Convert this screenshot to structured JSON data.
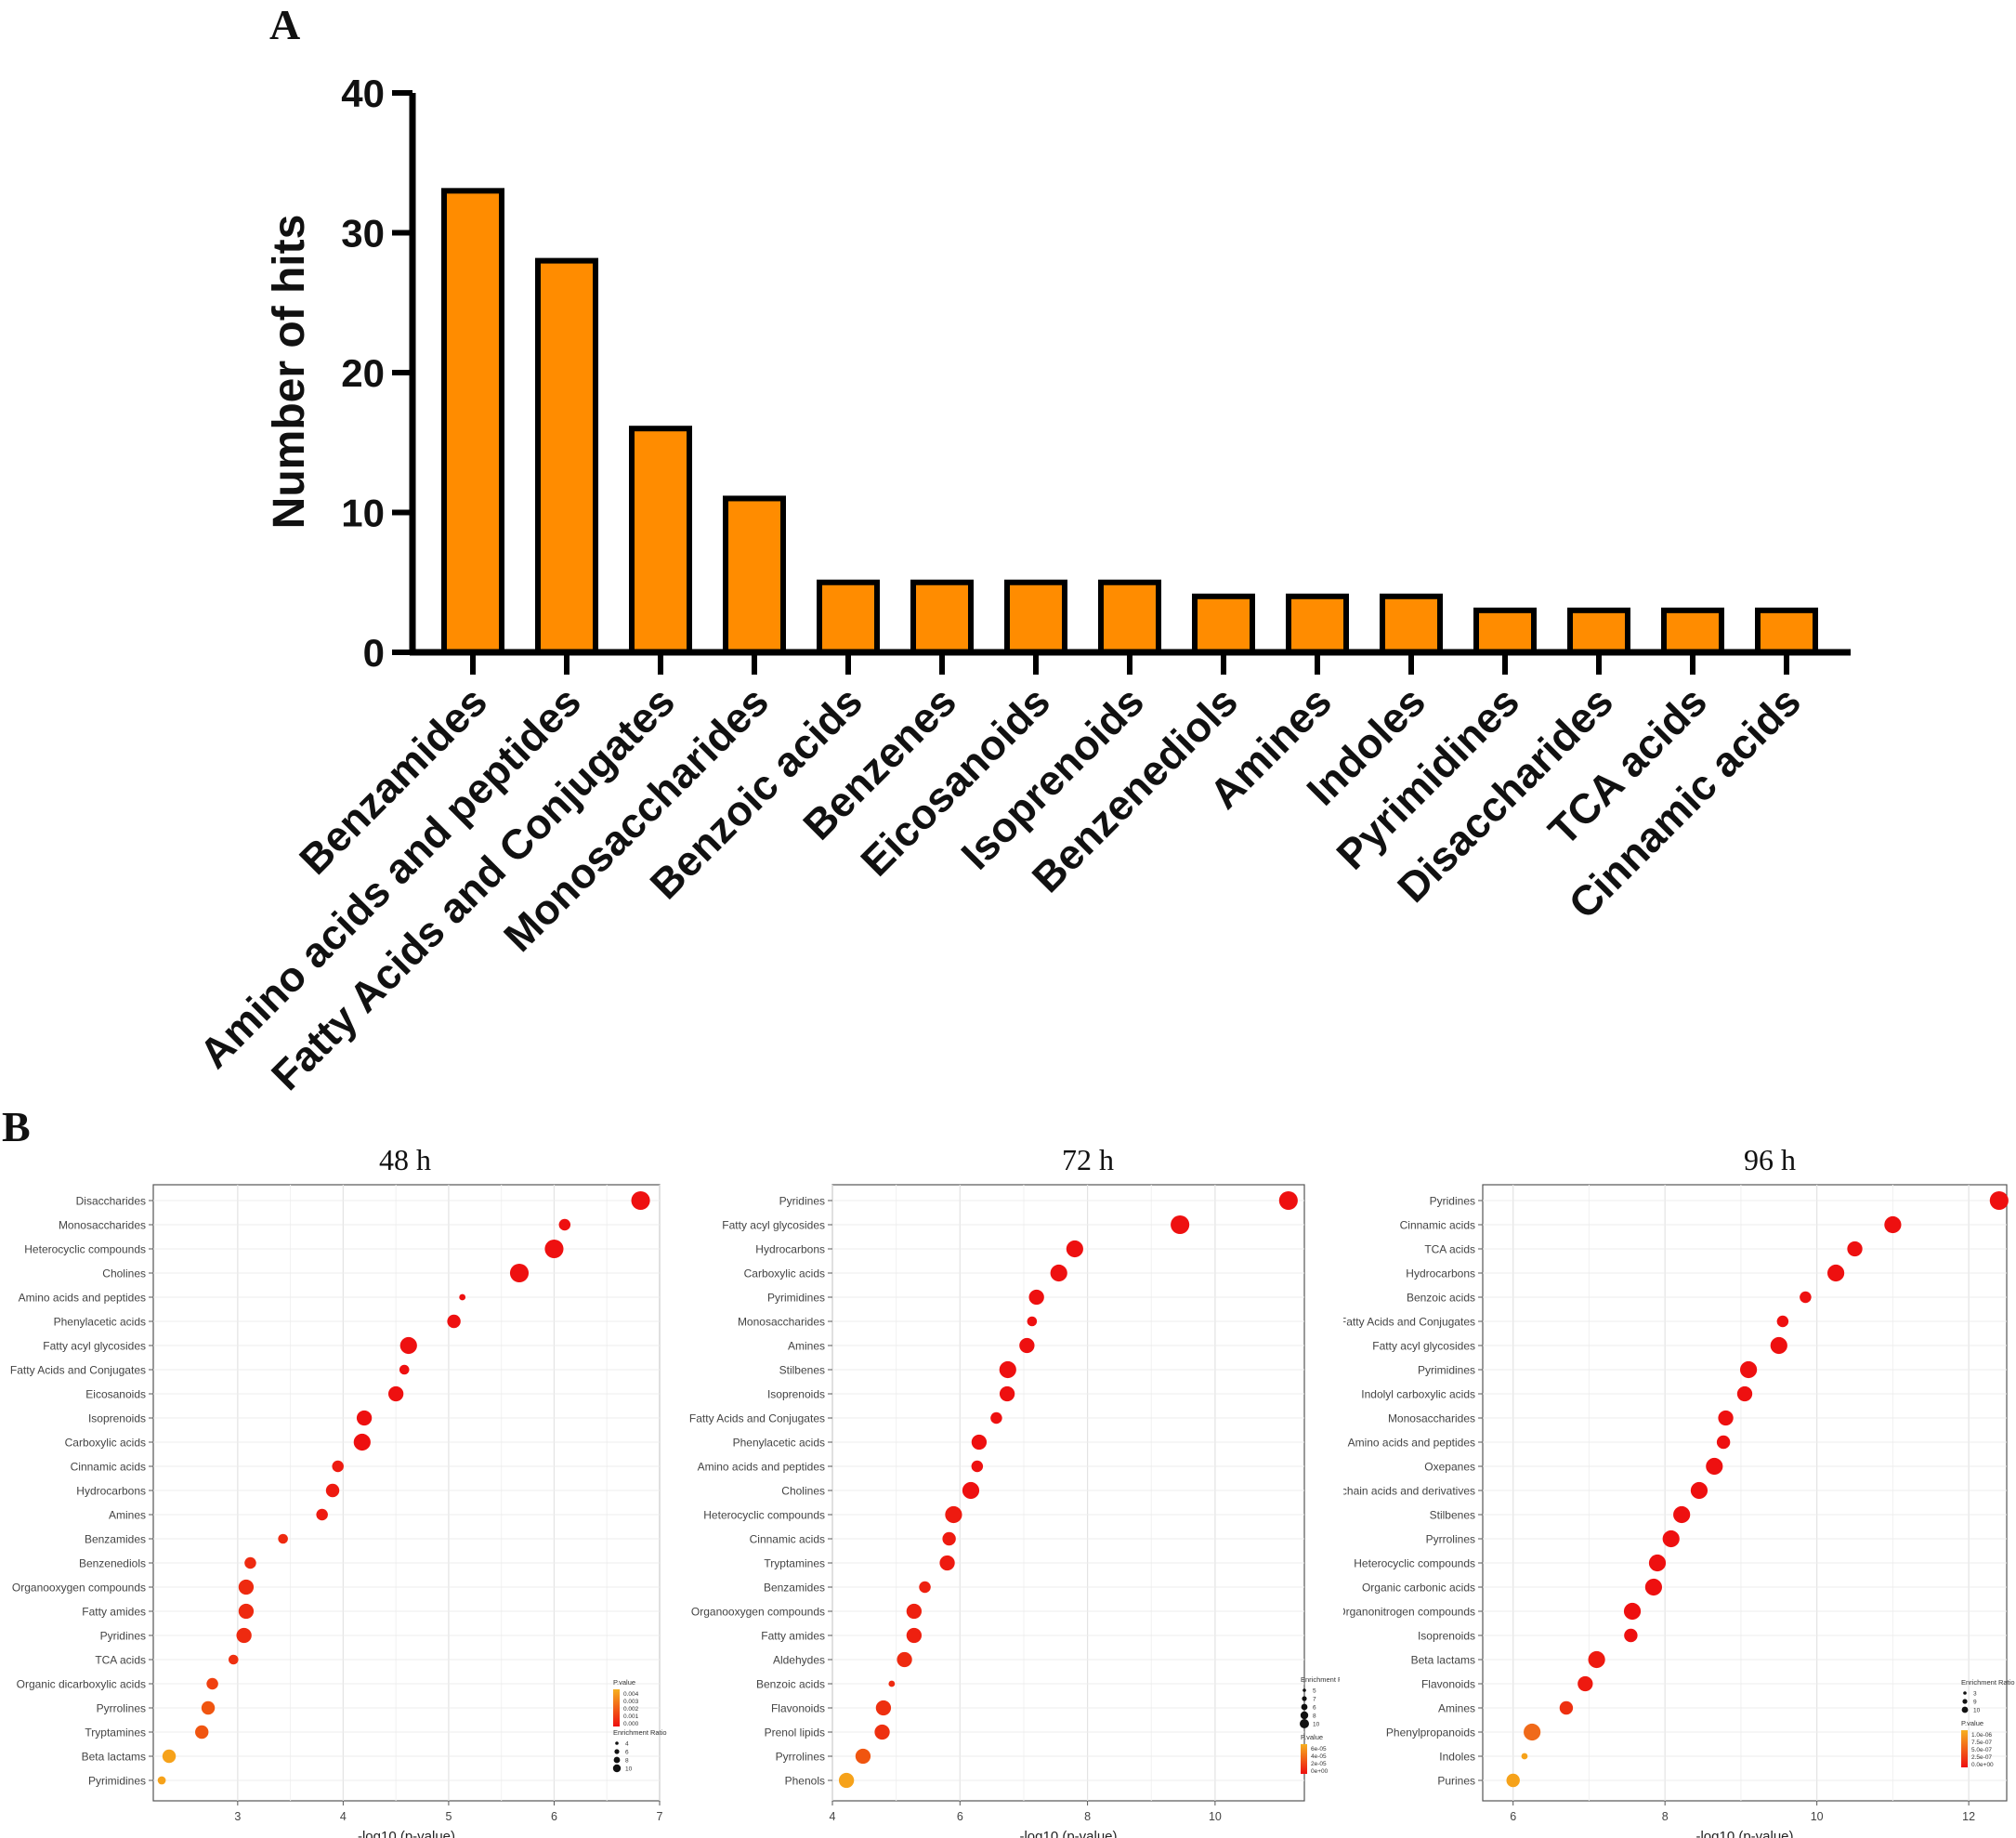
{
  "panels": {
    "a_label": "A",
    "b_label": "B"
  },
  "chart_data": [
    {
      "type": "bar",
      "title": "",
      "ylabel": "Number of hits",
      "xlabel": "",
      "ylim": [
        0,
        40
      ],
      "yticks": [
        0,
        10,
        20,
        30,
        40
      ],
      "bar_color": "#FF8C00",
      "categories": [
        "Benzamides",
        "Amino acids and peptides",
        "Fatty Acids and Conjugates",
        "Monosaccharides",
        "Benzoic acids",
        "Benzenes",
        "Eicosanoids",
        "Isoprenoids",
        "Benzenediols",
        "Amines",
        "Indoles",
        "Pyrimidines",
        "Disaccharides",
        "TCA acids",
        "Cinnamic acids"
      ],
      "values": [
        33,
        28,
        16,
        11,
        5,
        5,
        5,
        5,
        4,
        4,
        4,
        3,
        3,
        3,
        3
      ]
    },
    {
      "type": "scatter",
      "title": "48 h",
      "xlabel": "-log10 (p-value)",
      "xlim": [
        2.2,
        7
      ],
      "xticks": [
        3,
        4,
        5,
        6,
        7
      ],
      "legend": {
        "pvalue_title": "P.value",
        "pvalue_ticks": [
          "0.004",
          "0.003",
          "0.002",
          "0.001",
          "0.000"
        ],
        "ratio_title": "Enrichment Ratio",
        "ratio_ticks": [
          "4",
          "6",
          "8",
          "10"
        ]
      },
      "categories": [
        "Disaccharides",
        "Monosaccharides",
        "Heterocyclic compounds",
        "Cholines",
        "Amino acids and peptides",
        "Phenylacetic acids",
        "Fatty acyl glycosides",
        "Fatty Acids and Conjugates",
        "Eicosanoids",
        "Isoprenoids",
        "Carboxylic acids",
        "Cinnamic acids",
        "Hydrocarbons",
        "Amines",
        "Benzamides",
        "Benzenediols",
        "Organooxygen compounds",
        "Fatty amides",
        "Pyridines",
        "TCA acids",
        "Organic dicarboxylic acids",
        "Pyrrolines",
        "Tryptamines",
        "Beta lactams",
        "Pyrimidines"
      ],
      "x": [
        6.82,
        6.1,
        6.0,
        5.67,
        5.13,
        5.05,
        4.62,
        4.58,
        4.5,
        4.2,
        4.18,
        3.95,
        3.9,
        3.8,
        3.43,
        3.12,
        3.08,
        3.08,
        3.06,
        2.96,
        2.76,
        2.72,
        2.66,
        2.35,
        2.28
      ],
      "ratio": [
        9,
        5,
        9,
        9,
        2,
        6,
        8,
        4,
        7,
        7,
        8,
        5,
        6,
        5,
        4,
        5,
        7,
        7,
        7,
        4,
        5,
        6,
        6,
        6,
        3
      ],
      "color": [
        "#EE1010",
        "#EE1010",
        "#EE1010",
        "#EE1010",
        "#EE1010",
        "#EE1010",
        "#EE1010",
        "#EE1010",
        "#EE1010",
        "#EE1010",
        "#EE1010",
        "#EE1A10",
        "#EE1A10",
        "#EE1A10",
        "#EE2A10",
        "#EE2A10",
        "#EE2A10",
        "#EE2A10",
        "#EE2A10",
        "#EE3010",
        "#F04010",
        "#F05510",
        "#F05510",
        "#F6A21A",
        "#F6A21A"
      ]
    },
    {
      "type": "scatter",
      "title": "72 h",
      "xlabel": "-log10 (p-value)",
      "xlim": [
        4,
        11.4
      ],
      "xticks": [
        4,
        6,
        8,
        10
      ],
      "legend": {
        "ratio_title": "Enrichment Ratio",
        "ratio_ticks": [
          "5",
          "7",
          "6",
          "8",
          "10"
        ],
        "pvalue_title": "P.value",
        "pvalue_ticks": [
          "6e-05",
          "4e-05",
          "2e-05",
          "0e+00"
        ]
      },
      "categories": [
        "Pyridines",
        "Fatty acyl glycosides",
        "Hydrocarbons",
        "Carboxylic acids",
        "Pyrimidines",
        "Monosaccharides",
        "Amines",
        "Stilbenes",
        "Isoprenoids",
        "Fatty Acids and Conjugates",
        "Phenylacetic acids",
        "Amino acids and peptides",
        "Cholines",
        "Heterocyclic compounds",
        "Cinnamic acids",
        "Tryptamines",
        "Benzamides",
        "Organooxygen compounds",
        "Fatty amides",
        "Aldehydes",
        "Benzoic acids",
        "Flavonoids",
        "Prenol lipids",
        "Pyrrolines",
        "Phenols"
      ],
      "x": [
        11.15,
        9.45,
        7.8,
        7.55,
        7.2,
        7.13,
        7.05,
        6.75,
        6.74,
        6.57,
        6.3,
        6.27,
        6.17,
        5.9,
        5.83,
        5.8,
        5.45,
        5.28,
        5.28,
        5.13,
        4.93,
        4.8,
        4.78,
        4.48,
        4.22
      ],
      "ratio": [
        9,
        9,
        8,
        8,
        7,
        4,
        7,
        8,
        7,
        5,
        7,
        5,
        8,
        8,
        6,
        7,
        5,
        7,
        7,
        7,
        2,
        7,
        7,
        7,
        7
      ],
      "color": [
        "#EE1010",
        "#EE1010",
        "#EE1010",
        "#EE1010",
        "#EE1010",
        "#EE1010",
        "#EE1010",
        "#EE1010",
        "#EE1010",
        "#EE1010",
        "#EE1010",
        "#EE1010",
        "#EE1010",
        "#EE1A10",
        "#EE1A10",
        "#EE1A10",
        "#EE2010",
        "#EE2010",
        "#EE2010",
        "#EE2A10",
        "#EE2A10",
        "#EE3010",
        "#EE3010",
        "#F05510",
        "#F6A21A"
      ]
    },
    {
      "type": "scatter",
      "title": "96 h",
      "xlabel": "-log10 (p-value)",
      "xlim": [
        5.6,
        12.5
      ],
      "xticks": [
        6,
        8,
        10,
        12
      ],
      "legend": {
        "ratio_title": "Enrichment Ratio",
        "ratio_ticks": [
          "3",
          "9",
          "10"
        ],
        "pvalue_title": "P.value",
        "pvalue_ticks": [
          "1.0e-06",
          "7.5e-07",
          "5.0e-07",
          "2.5e-07",
          "0.0e+00"
        ]
      },
      "categories": [
        "Pyridines",
        "Cinnamic acids",
        "TCA acids",
        "Hydrocarbons",
        "Benzoic acids",
        "Fatty Acids and Conjugates",
        "Fatty acyl glycosides",
        "Pyrimidines",
        "Indolyl carboxylic acids",
        "Monosaccharides",
        "Amino acids and peptides",
        "Oxepanes",
        "Short-chain acids and derivatives",
        "Stilbenes",
        "Pyrrolines",
        "Heterocyclic compounds",
        "Organic carbonic acids",
        "Organonitrogen compounds",
        "Isoprenoids",
        "Beta lactams",
        "Flavonoids",
        "Amines",
        "Phenylpropanoids",
        "Indoles",
        "Purines"
      ],
      "x": [
        12.4,
        11.0,
        10.5,
        10.25,
        9.85,
        9.55,
        9.5,
        9.1,
        9.05,
        8.8,
        8.77,
        8.65,
        8.45,
        8.22,
        8.08,
        7.9,
        7.85,
        7.57,
        7.55,
        7.1,
        6.95,
        6.7,
        6.25,
        6.15,
        6.0
      ],
      "ratio": [
        9,
        8,
        7,
        8,
        5,
        5,
        8,
        8,
        7,
        7,
        6,
        8,
        8,
        8,
        8,
        8,
        8,
        8,
        6,
        8,
        7,
        6,
        8,
        2,
        6
      ],
      "color": [
        "#EE1010",
        "#EE1010",
        "#EE1010",
        "#EE1010",
        "#EE1010",
        "#EE1010",
        "#EE1010",
        "#EE1010",
        "#EE1010",
        "#EE1010",
        "#EE1010",
        "#EE1010",
        "#EE1010",
        "#EE1010",
        "#EE1010",
        "#EE1010",
        "#EE1010",
        "#EE1010",
        "#EE1010",
        "#EE1A10",
        "#EE1A10",
        "#EE3010",
        "#F06A1A",
        "#F6A21A",
        "#F6A21A"
      ]
    }
  ]
}
